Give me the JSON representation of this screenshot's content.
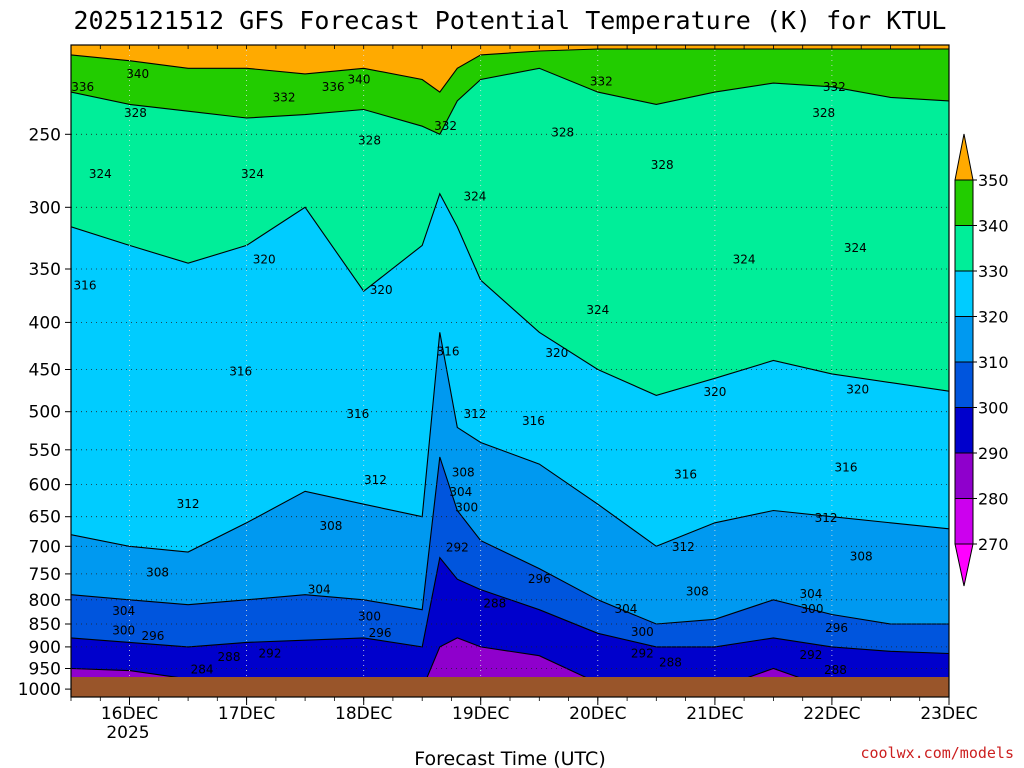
{
  "chart_data": {
    "type": "heatmap",
    "title": "2025121512 GFS Forecast Potential Temperature (K) for KTUL",
    "xlabel": "Forecast Time (UTC)",
    "ylabel": "",
    "credit": "coolwx.com/models",
    "x_ticks": [
      "16DEC",
      "17DEC",
      "18DEC",
      "19DEC",
      "20DEC",
      "21DEC",
      "22DEC",
      "23DEC"
    ],
    "x_tick_days": [
      16,
      17,
      18,
      19,
      20,
      21,
      22,
      23
    ],
    "x_year_label": "2025",
    "xlim_days": [
      15.5,
      23.0
    ],
    "y_ticks": [
      "250",
      "300",
      "350",
      "400",
      "450",
      "500",
      "550",
      "600",
      "650",
      "700",
      "750",
      "800",
      "850",
      "900",
      "950",
      "1000"
    ],
    "y_tick_values": [
      250,
      300,
      350,
      400,
      450,
      500,
      550,
      600,
      650,
      700,
      750,
      800,
      850,
      900,
      950,
      1000
    ],
    "ylim_hpa": [
      200,
      1020
    ],
    "y_scale": "log-pressure, inverted",
    "grid": true,
    "colorbar": {
      "labels": [
        "350",
        "340",
        "330",
        "320",
        "310",
        "300",
        "290",
        "280",
        "270"
      ],
      "levels": [
        270,
        280,
        290,
        300,
        310,
        320,
        330,
        340,
        350
      ],
      "colors": [
        "#ff00ff",
        "#cc00ee",
        "#8f00cc",
        "#0000cc",
        "#0055dd",
        "#0099f0",
        "#00ccff",
        "#00ee99",
        "#22cc00",
        "#ffff00",
        "#ffaa00"
      ],
      "placement": "right"
    },
    "series": [
      {
        "level": 340,
        "x": [
          15.5,
          16.0,
          16.5,
          17.0,
          17.5,
          18.0,
          18.5,
          18.65,
          18.8,
          19.0,
          19.5,
          20.0,
          20.5,
          21.0,
          21.5,
          22.0,
          22.5,
          23.0
        ],
        "y": [
          205,
          208,
          212,
          212,
          215,
          212,
          218,
          225,
          212,
          205,
          203,
          202,
          202,
          202,
          202,
          202,
          202,
          202
        ]
      },
      {
        "level": 330,
        "x": [
          15.5,
          16.0,
          16.5,
          17.0,
          17.5,
          18.0,
          18.5,
          18.65,
          18.8,
          19.0,
          19.5,
          20.0,
          20.5,
          21.0,
          21.5,
          22.0,
          22.5,
          23.0
        ],
        "y": [
          225,
          232,
          236,
          240,
          238,
          235,
          245,
          250,
          230,
          218,
          212,
          225,
          232,
          225,
          220,
          222,
          228,
          230
        ]
      },
      {
        "level": 320,
        "x": [
          15.5,
          16.0,
          16.5,
          17.0,
          17.5,
          18.0,
          18.5,
          18.65,
          18.8,
          19.0,
          19.5,
          20.0,
          20.5,
          21.0,
          21.5,
          22.0,
          22.5,
          23.0
        ],
        "y": [
          315,
          330,
          345,
          330,
          300,
          370,
          330,
          290,
          315,
          360,
          410,
          450,
          480,
          460,
          440,
          455,
          465,
          475
        ]
      },
      {
        "level": 310,
        "x": [
          15.5,
          16.0,
          16.5,
          17.0,
          17.5,
          18.0,
          18.5,
          18.65,
          18.8,
          19.0,
          19.5,
          20.0,
          20.5,
          21.0,
          21.5,
          22.0,
          22.5,
          23.0
        ],
        "y": [
          680,
          700,
          710,
          660,
          610,
          630,
          650,
          410,
          520,
          540,
          570,
          630,
          700,
          660,
          640,
          650,
          660,
          670
        ]
      },
      {
        "level": 300,
        "x": [
          15.5,
          16.0,
          16.5,
          17.0,
          17.5,
          18.0,
          18.5,
          18.65,
          18.8,
          19.0,
          19.5,
          20.0,
          20.5,
          21.0,
          21.5,
          22.0,
          22.5,
          23.0
        ],
        "y": [
          790,
          800,
          810,
          800,
          790,
          800,
          820,
          560,
          640,
          690,
          740,
          800,
          850,
          840,
          800,
          830,
          850,
          850
        ]
      },
      {
        "level": 290,
        "x": [
          15.5,
          16.0,
          16.5,
          17.0,
          17.5,
          18.0,
          18.5,
          18.65,
          18.8,
          19.0,
          19.5,
          20.0,
          20.5,
          21.0,
          21.5,
          22.0,
          22.5,
          23.0
        ],
        "y": [
          880,
          890,
          900,
          890,
          885,
          880,
          900,
          720,
          760,
          780,
          820,
          870,
          900,
          900,
          880,
          900,
          910,
          915
        ]
      },
      {
        "level": 280,
        "x": [
          15.5,
          16.0,
          16.5,
          17.0,
          17.5,
          18.0,
          18.5,
          18.65,
          18.8,
          19.0,
          19.5,
          20.0,
          20.5,
          21.0,
          21.5,
          22.0,
          22.5,
          23.0
        ],
        "y": [
          950,
          955,
          975,
          1000,
          1000,
          1000,
          1000,
          900,
          880,
          900,
          920,
          985,
          1000,
          1000,
          950,
          1000,
          1000,
          1000
        ]
      },
      {
        "level": 270,
        "x": [
          15.5,
          15.7,
          16.0,
          16.3,
          16.5,
          16.7,
          16.8
        ],
        "y": [
          1000,
          990,
          980,
          985,
          990,
          995,
          1000
        ]
      }
    ],
    "contour_labels": [
      {
        "text": "340",
        "day": 16.07,
        "hpa": 215
      },
      {
        "text": "336",
        "day": 15.6,
        "hpa": 222
      },
      {
        "text": "332",
        "day": 17.32,
        "hpa": 228
      },
      {
        "text": "336",
        "day": 17.74,
        "hpa": 222
      },
      {
        "text": "340",
        "day": 17.96,
        "hpa": 218
      },
      {
        "text": "332",
        "day": 18.7,
        "hpa": 245
      },
      {
        "text": "332",
        "day": 20.03,
        "hpa": 219
      },
      {
        "text": "332",
        "day": 22.02,
        "hpa": 222
      },
      {
        "text": "328",
        "day": 16.05,
        "hpa": 237
      },
      {
        "text": "328",
        "day": 18.05,
        "hpa": 254
      },
      {
        "text": "328",
        "day": 19.7,
        "hpa": 249
      },
      {
        "text": "328",
        "day": 20.55,
        "hpa": 270
      },
      {
        "text": "328",
        "day": 21.93,
        "hpa": 237
      },
      {
        "text": "324",
        "day": 15.75,
        "hpa": 276
      },
      {
        "text": "324",
        "day": 17.05,
        "hpa": 276
      },
      {
        "text": "324",
        "day": 18.95,
        "hpa": 292
      },
      {
        "text": "324",
        "day": 21.25,
        "hpa": 342
      },
      {
        "text": "324",
        "day": 22.2,
        "hpa": 332
      },
      {
        "text": "324",
        "day": 20.0,
        "hpa": 388
      },
      {
        "text": "320",
        "day": 17.15,
        "hpa": 342
      },
      {
        "text": "320",
        "day": 18.15,
        "hpa": 369
      },
      {
        "text": "320",
        "day": 19.65,
        "hpa": 432
      },
      {
        "text": "320",
        "day": 21.0,
        "hpa": 476
      },
      {
        "text": "320",
        "day": 22.22,
        "hpa": 473
      },
      {
        "text": "316",
        "day": 15.62,
        "hpa": 365
      },
      {
        "text": "316",
        "day": 16.95,
        "hpa": 452
      },
      {
        "text": "316",
        "day": 17.95,
        "hpa": 503
      },
      {
        "text": "316",
        "day": 18.72,
        "hpa": 430
      },
      {
        "text": "316",
        "day": 19.45,
        "hpa": 512
      },
      {
        "text": "316",
        "day": 20.75,
        "hpa": 585
      },
      {
        "text": "316",
        "day": 22.12,
        "hpa": 575
      },
      {
        "text": "312",
        "day": 18.1,
        "hpa": 593
      },
      {
        "text": "312",
        "day": 18.95,
        "hpa": 503
      },
      {
        "text": "312",
        "day": 16.5,
        "hpa": 630
      },
      {
        "text": "312",
        "day": 20.73,
        "hpa": 701
      },
      {
        "text": "312",
        "day": 21.95,
        "hpa": 652
      },
      {
        "text": "308",
        "day": 17.72,
        "hpa": 665
      },
      {
        "text": "308",
        "day": 18.85,
        "hpa": 582
      },
      {
        "text": "308",
        "day": 16.24,
        "hpa": 747
      },
      {
        "text": "308",
        "day": 20.85,
        "hpa": 784
      },
      {
        "text": "308",
        "day": 22.25,
        "hpa": 718
      },
      {
        "text": "304",
        "day": 18.83,
        "hpa": 611
      },
      {
        "text": "304",
        "day": 17.62,
        "hpa": 780
      },
      {
        "text": "304",
        "day": 15.95,
        "hpa": 823
      },
      {
        "text": "304",
        "day": 20.24,
        "hpa": 819
      },
      {
        "text": "304",
        "day": 21.82,
        "hpa": 789
      },
      {
        "text": "300",
        "day": 18.88,
        "hpa": 635
      },
      {
        "text": "300",
        "day": 18.05,
        "hpa": 834
      },
      {
        "text": "300",
        "day": 15.95,
        "hpa": 864
      },
      {
        "text": "300",
        "day": 20.38,
        "hpa": 867
      },
      {
        "text": "300",
        "day": 21.83,
        "hpa": 819
      },
      {
        "text": "296",
        "day": 19.5,
        "hpa": 760
      },
      {
        "text": "296",
        "day": 16.2,
        "hpa": 876
      },
      {
        "text": "296",
        "day": 18.14,
        "hpa": 869
      },
      {
        "text": "296",
        "day": 22.04,
        "hpa": 858
      },
      {
        "text": "292",
        "day": 18.8,
        "hpa": 702
      },
      {
        "text": "292",
        "day": 17.2,
        "hpa": 915
      },
      {
        "text": "292",
        "day": 20.38,
        "hpa": 915
      },
      {
        "text": "292",
        "day": 21.82,
        "hpa": 918
      },
      {
        "text": "288",
        "day": 19.12,
        "hpa": 807
      },
      {
        "text": "288",
        "day": 16.85,
        "hpa": 923
      },
      {
        "text": "288",
        "day": 20.62,
        "hpa": 936
      },
      {
        "text": "288",
        "day": 22.03,
        "hpa": 953
      },
      {
        "text": "284",
        "day": 16.62,
        "hpa": 952
      }
    ]
  }
}
